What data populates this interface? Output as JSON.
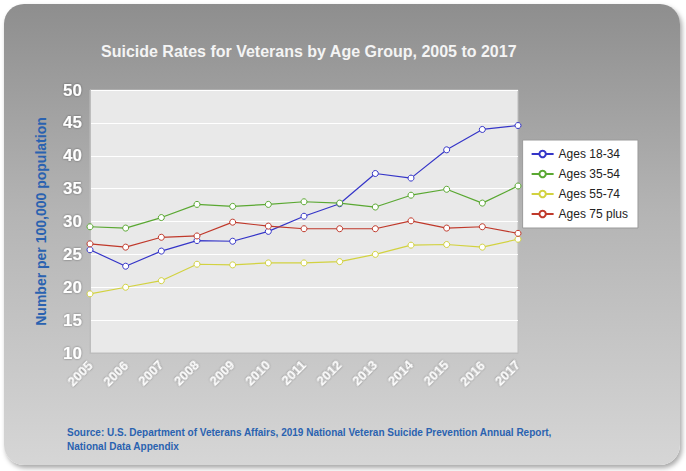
{
  "chart_data": {
    "type": "line",
    "title": "Suicide Rates for Veterans by Age Group, 2005 to 2017",
    "y_label": "Number per 100,000 population",
    "source": "Source: U.S. Department of Veterans Affairs, 2019 National Veteran Suicide Prevention Annual Report,\nNational Data Appendix",
    "categories": [
      "2005",
      "2006",
      "2007",
      "2008",
      "2009",
      "2010",
      "2011",
      "2012",
      "2013",
      "2014",
      "2015",
      "2016",
      "2017"
    ],
    "series": [
      {
        "name": "Ages 18-34",
        "color": "#3535c8",
        "marker": "circle",
        "values": [
          25.7,
          23.2,
          25.5,
          27.1,
          27.0,
          28.5,
          30.8,
          32.7,
          37.3,
          36.6,
          40.9,
          44.0,
          44.6
        ]
      },
      {
        "name": "Ages 35-54",
        "color": "#5aa832",
        "marker": "circle",
        "values": [
          29.2,
          29.0,
          30.6,
          32.6,
          32.3,
          32.6,
          33.0,
          32.8,
          32.2,
          34.0,
          34.9,
          32.8,
          35.4
        ]
      },
      {
        "name": "Ages 55-74",
        "color": "#d2d240",
        "marker": "circle",
        "values": [
          19.0,
          20.0,
          21.0,
          23.5,
          23.4,
          23.7,
          23.7,
          23.9,
          25.0,
          26.4,
          26.5,
          26.1,
          27.3
        ]
      },
      {
        "name": "Ages 75 plus",
        "color": "#c0392b",
        "marker": "circle",
        "values": [
          26.6,
          26.1,
          27.6,
          27.8,
          29.9,
          29.3,
          28.9,
          28.9,
          28.9,
          30.1,
          29.0,
          29.2,
          28.2
        ]
      }
    ],
    "ylim": [
      10,
      50
    ],
    "yticks": [
      10,
      15,
      20,
      25,
      30,
      35,
      40,
      45,
      50
    ],
    "grid": true,
    "legend": "right"
  }
}
